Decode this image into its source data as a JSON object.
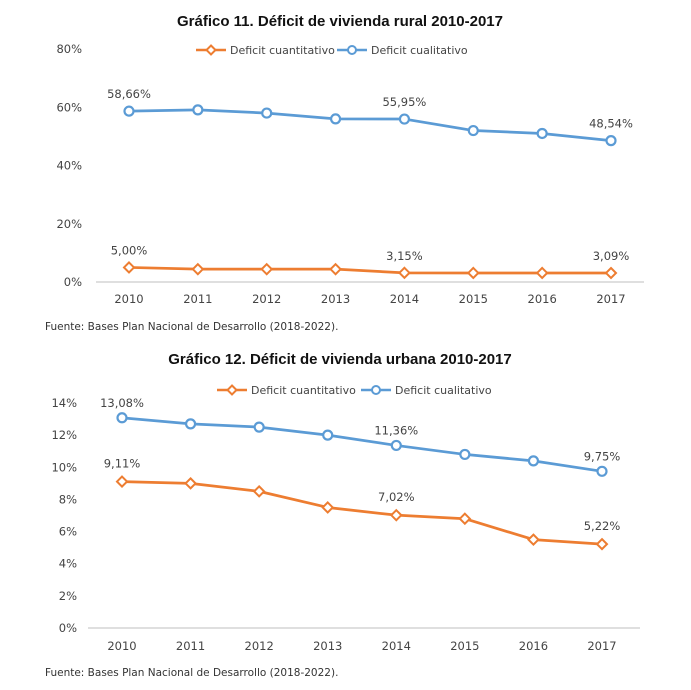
{
  "chart_data": [
    {
      "type": "line",
      "title": "Gráfico 11. Déficit de vivienda rural 2010-2017",
      "source": "Fuente: Bases Plan Nacional de Desarrollo (2018-2022).",
      "categories": [
        "2010",
        "2011",
        "2012",
        "2013",
        "2014",
        "2015",
        "2016",
        "2017"
      ],
      "ylim": [
        0,
        80
      ],
      "y_ticks": [
        "0%",
        "20%",
        "40%",
        "60%",
        "80%"
      ],
      "y_tick_values": [
        0,
        20,
        40,
        60,
        80
      ],
      "grid": false,
      "legend_position": "top",
      "series": [
        {
          "name": "Deficit cuantitativo",
          "color": "#ed7d31",
          "marker": "diamond",
          "values": [
            5.0,
            4.4,
            4.4,
            4.4,
            3.15,
            3.1,
            3.1,
            3.09
          ],
          "labels": [
            {
              "index": 0,
              "text": "5,00%"
            },
            {
              "index": 4,
              "text": "3,15%"
            },
            {
              "index": 7,
              "text": "3,09%"
            }
          ]
        },
        {
          "name": "Deficit cualitativo",
          "color": "#5b9bd5",
          "marker": "circle",
          "values": [
            58.66,
            59.1,
            58.0,
            56.0,
            55.95,
            52.0,
            51.0,
            48.54
          ],
          "labels": [
            {
              "index": 0,
              "text": "58,66%"
            },
            {
              "index": 4,
              "text": "55,95%"
            },
            {
              "index": 7,
              "text": "48,54%"
            }
          ]
        }
      ]
    },
    {
      "type": "line",
      "title": "Gráfico 12. Déficit de vivienda urbana 2010-2017",
      "source": "Fuente: Bases Plan Nacional de Desarrollo (2018-2022).",
      "categories": [
        "2010",
        "2011",
        "2012",
        "2013",
        "2014",
        "2015",
        "2016",
        "2017"
      ],
      "ylim": [
        0,
        14
      ],
      "y_ticks": [
        "0%",
        "2%",
        "4%",
        "6%",
        "8%",
        "10%",
        "12%",
        "14%"
      ],
      "y_tick_values": [
        0,
        2,
        4,
        6,
        8,
        10,
        12,
        14
      ],
      "grid": false,
      "legend_position": "top",
      "series": [
        {
          "name": "Deficit cuantitativo",
          "color": "#ed7d31",
          "marker": "diamond",
          "values": [
            9.11,
            9.0,
            8.5,
            7.5,
            7.02,
            6.8,
            5.5,
            5.22
          ],
          "labels": [
            {
              "index": 0,
              "text": "9,11%"
            },
            {
              "index": 4,
              "text": "7,02%"
            },
            {
              "index": 7,
              "text": "5,22%"
            }
          ]
        },
        {
          "name": "Deficit cualitativo",
          "color": "#5b9bd5",
          "marker": "circle",
          "values": [
            13.08,
            12.7,
            12.5,
            12.0,
            11.36,
            10.8,
            10.4,
            9.75
          ],
          "labels": [
            {
              "index": 0,
              "text": "13,08%"
            },
            {
              "index": 4,
              "text": "11,36%"
            },
            {
              "index": 7,
              "text": "9,75%"
            }
          ]
        }
      ]
    }
  ]
}
